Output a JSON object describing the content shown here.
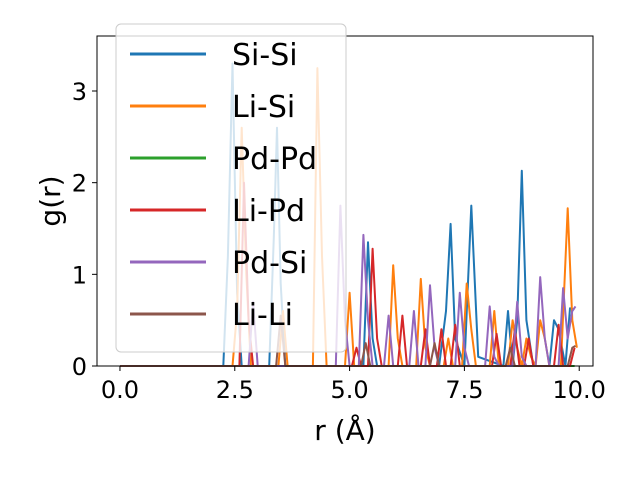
{
  "chart_data": {
    "type": "line",
    "title": "",
    "xlabel": "r (Å)",
    "ylabel": "g(r)",
    "xlim": [
      -0.5,
      10.3
    ],
    "ylim": [
      0,
      3.6
    ],
    "xticks": [
      0.0,
      2.5,
      5.0,
      7.5,
      10.0
    ],
    "xtick_labels": [
      "0.0",
      "2.5",
      "5.0",
      "7.5",
      "10.0"
    ],
    "yticks": [
      0,
      1,
      2,
      3
    ],
    "ytick_labels": [
      "0",
      "1",
      "2",
      "3"
    ],
    "legend_position": "upper-left",
    "series": [
      {
        "name": "Si-Si",
        "color": "#1f77b4",
        "points": [
          [
            0,
            0
          ],
          [
            2.25,
            0
          ],
          [
            2.35,
            1.2
          ],
          [
            2.45,
            3.3
          ],
          [
            2.55,
            0.8
          ],
          [
            2.65,
            0
          ],
          [
            3.25,
            0
          ],
          [
            3.35,
            1.4
          ],
          [
            3.42,
            2.6
          ],
          [
            3.5,
            0.9
          ],
          [
            3.6,
            0
          ],
          [
            5.3,
            0
          ],
          [
            5.4,
            1.35
          ],
          [
            5.5,
            0.3
          ],
          [
            5.6,
            0
          ],
          [
            6.95,
            0
          ],
          [
            7.1,
            0.6
          ],
          [
            7.2,
            1.55
          ],
          [
            7.3,
            0.3
          ],
          [
            7.5,
            0
          ],
          [
            7.65,
            1.75
          ],
          [
            7.8,
            0.1
          ],
          [
            8.35,
            0
          ],
          [
            8.45,
            0.6
          ],
          [
            8.55,
            0
          ],
          [
            8.65,
            0.5
          ],
          [
            8.75,
            2.13
          ],
          [
            8.85,
            0.5
          ],
          [
            9.0,
            0
          ],
          [
            9.35,
            0
          ],
          [
            9.45,
            0.5
          ],
          [
            9.55,
            0.4
          ],
          [
            9.7,
            0
          ],
          [
            9.8,
            0.63
          ],
          [
            9.9,
            0.62
          ]
        ]
      },
      {
        "name": "Li-Si",
        "color": "#ff7f0e",
        "points": [
          [
            0,
            0
          ],
          [
            2.45,
            0
          ],
          [
            2.55,
            0.6
          ],
          [
            2.65,
            2.6
          ],
          [
            2.75,
            1.0
          ],
          [
            2.85,
            0
          ],
          [
            3.45,
            0
          ],
          [
            3.55,
            0.6
          ],
          [
            3.65,
            0
          ],
          [
            4.2,
            0
          ],
          [
            4.3,
            3.25
          ],
          [
            4.4,
            1.2
          ],
          [
            4.5,
            0
          ],
          [
            4.9,
            0
          ],
          [
            5.0,
            0.8
          ],
          [
            5.1,
            0
          ],
          [
            5.85,
            0
          ],
          [
            5.95,
            1.1
          ],
          [
            6.05,
            0.3
          ],
          [
            6.15,
            0
          ],
          [
            6.45,
            0
          ],
          [
            6.55,
            0.95
          ],
          [
            6.65,
            0.2
          ],
          [
            6.75,
            0
          ],
          [
            7.05,
            0
          ],
          [
            7.15,
            0.3
          ],
          [
            7.25,
            0
          ],
          [
            7.45,
            0
          ],
          [
            7.55,
            0.9
          ],
          [
            7.65,
            0.4
          ],
          [
            7.75,
            0
          ],
          [
            8.05,
            0
          ],
          [
            8.15,
            0.6
          ],
          [
            8.25,
            0
          ],
          [
            8.45,
            0
          ],
          [
            8.55,
            0.5
          ],
          [
            8.65,
            0.2
          ],
          [
            8.75,
            0
          ],
          [
            8.85,
            0.3
          ],
          [
            8.95,
            0.1
          ],
          [
            9.05,
            0
          ],
          [
            9.15,
            0.5
          ],
          [
            9.25,
            0.3
          ],
          [
            9.35,
            0
          ],
          [
            9.6,
            0
          ],
          [
            9.75,
            1.72
          ],
          [
            9.85,
            0.5
          ],
          [
            9.95,
            0.2
          ]
        ]
      },
      {
        "name": "Pd-Pd",
        "color": "#2ca02c",
        "points": [
          [
            0,
            0
          ],
          [
            9.9,
            0
          ]
        ]
      },
      {
        "name": "Li-Pd",
        "color": "#d62728",
        "points": [
          [
            0,
            0
          ],
          [
            2.6,
            0
          ],
          [
            2.7,
            2.0
          ],
          [
            2.8,
            0.5
          ],
          [
            2.9,
            0
          ],
          [
            5.05,
            0
          ],
          [
            5.15,
            0.2
          ],
          [
            5.25,
            0
          ],
          [
            5.4,
            0
          ],
          [
            5.5,
            1.28
          ],
          [
            5.6,
            0.3
          ],
          [
            5.7,
            0
          ],
          [
            6.05,
            0
          ],
          [
            6.15,
            0.55
          ],
          [
            6.25,
            0
          ],
          [
            6.55,
            0
          ],
          [
            6.65,
            0.4
          ],
          [
            6.75,
            0
          ],
          [
            6.9,
            0
          ],
          [
            7.0,
            0.4
          ],
          [
            7.1,
            0
          ],
          [
            7.2,
            0
          ],
          [
            7.3,
            0.45
          ],
          [
            7.4,
            0
          ],
          [
            8.1,
            0
          ],
          [
            8.2,
            0.35
          ],
          [
            8.3,
            0
          ],
          [
            8.5,
            0
          ],
          [
            8.6,
            0.4
          ],
          [
            8.7,
            0
          ],
          [
            8.8,
            0
          ],
          [
            8.9,
            0.3
          ],
          [
            9.0,
            0
          ],
          [
            9.45,
            0
          ],
          [
            9.55,
            0.45
          ],
          [
            9.65,
            0
          ],
          [
            9.8,
            0
          ],
          [
            9.9,
            0.2
          ]
        ]
      },
      {
        "name": "Pd-Si",
        "color": "#9467bd",
        "points": [
          [
            0,
            0
          ],
          [
            2.8,
            0
          ],
          [
            2.9,
            0.7
          ],
          [
            3.0,
            0
          ],
          [
            4.7,
            0
          ],
          [
            4.8,
            1.75
          ],
          [
            4.9,
            0.5
          ],
          [
            5.0,
            0
          ],
          [
            5.2,
            0
          ],
          [
            5.3,
            1.43
          ],
          [
            5.4,
            0.5
          ],
          [
            5.5,
            0
          ],
          [
            5.75,
            0
          ],
          [
            5.85,
            0.55
          ],
          [
            5.95,
            0
          ],
          [
            6.3,
            0
          ],
          [
            6.4,
            0.6
          ],
          [
            6.5,
            0
          ],
          [
            6.65,
            0
          ],
          [
            6.75,
            0.88
          ],
          [
            6.85,
            0.2
          ],
          [
            6.95,
            0
          ],
          [
            7.3,
            0
          ],
          [
            7.4,
            0.8
          ],
          [
            7.5,
            0.2
          ],
          [
            7.6,
            0
          ],
          [
            7.95,
            0
          ],
          [
            8.05,
            0.65
          ],
          [
            8.15,
            0.1
          ],
          [
            8.25,
            0
          ],
          [
            8.55,
            0
          ],
          [
            8.65,
            0.7
          ],
          [
            8.75,
            0.1
          ],
          [
            8.85,
            0
          ],
          [
            9.05,
            0
          ],
          [
            9.15,
            0.97
          ],
          [
            9.25,
            0.3
          ],
          [
            9.35,
            0
          ],
          [
            9.55,
            0
          ],
          [
            9.65,
            0.85
          ],
          [
            9.75,
            0.3
          ],
          [
            9.85,
            0.6
          ],
          [
            9.92,
            0.65
          ]
        ]
      },
      {
        "name": "Li-Li",
        "color": "#8c564b",
        "points": [
          [
            0,
            0
          ],
          [
            3.4,
            0
          ],
          [
            3.5,
            0.55
          ],
          [
            3.6,
            0
          ],
          [
            5.25,
            0
          ],
          [
            5.35,
            0.25
          ],
          [
            5.45,
            0
          ],
          [
            6.75,
            0
          ],
          [
            6.85,
            0.25
          ],
          [
            6.95,
            0
          ],
          [
            8.4,
            0
          ],
          [
            8.5,
            0.2
          ],
          [
            8.6,
            0
          ],
          [
            9.75,
            0
          ],
          [
            9.85,
            0.2
          ],
          [
            9.92,
            0.22
          ]
        ]
      }
    ]
  }
}
